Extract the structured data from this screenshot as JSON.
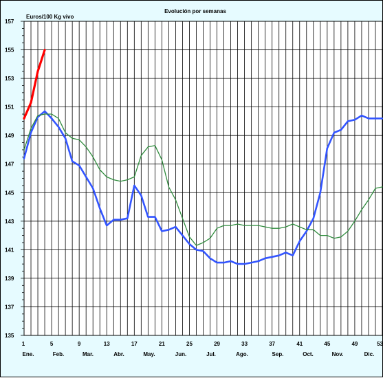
{
  "chart_data": {
    "type": "line",
    "title": "Evolución por semanas",
    "ylabel": "Euros/100 Kg vivo",
    "xlabel": "",
    "xlim": [
      1,
      53
    ],
    "ylim": [
      135,
      157
    ],
    "grid": true,
    "y_ticks": [
      135,
      137,
      139,
      141,
      143,
      145,
      147,
      149,
      151,
      153,
      155,
      157
    ],
    "x_ticks": [
      1,
      5,
      9,
      13,
      17,
      21,
      25,
      29,
      33,
      37,
      41,
      45,
      49,
      53
    ],
    "month_labels": [
      "Ene.",
      "Feb.",
      "Mar.",
      "Abr.",
      "May.",
      "Jun.",
      "Jul.",
      "Ago.",
      "Sep.",
      "Oct.",
      "Nov.",
      "Dic."
    ],
    "series": [
      {
        "color": "#ff0000",
        "x": [
          1,
          2,
          3,
          4
        ],
        "values": [
          150.2,
          151.3,
          153.5,
          155.0
        ]
      },
      {
        "color": "#3355ff",
        "x": [
          1,
          2,
          3,
          4,
          5,
          6,
          7,
          8,
          9,
          10,
          11,
          12,
          13,
          14,
          15,
          16,
          17,
          18,
          19,
          20,
          21,
          22,
          23,
          24,
          25,
          26,
          27,
          28,
          29,
          30,
          31,
          32,
          33,
          34,
          35,
          36,
          37,
          38,
          39,
          40,
          41,
          42,
          43,
          44,
          45,
          46,
          47,
          48,
          49,
          50,
          51,
          52,
          53
        ],
        "values": [
          147.4,
          149.2,
          150.3,
          150.7,
          150.2,
          149.6,
          148.8,
          147.2,
          146.9,
          146.1,
          145.3,
          143.9,
          142.7,
          143.1,
          143.1,
          143.2,
          145.5,
          144.8,
          143.3,
          143.3,
          142.3,
          142.4,
          142.6,
          142.0,
          141.4,
          141.0,
          140.9,
          140.4,
          140.1,
          140.1,
          140.2,
          140.0,
          140.0,
          140.1,
          140.2,
          140.4,
          140.5,
          140.6,
          140.8,
          140.6,
          141.6,
          142.3,
          143.2,
          145.0,
          148.1,
          149.2,
          149.4,
          150.0,
          150.1,
          150.4,
          150.2,
          150.2,
          150.2
        ]
      },
      {
        "color": "#2e8b3c",
        "x": [
          1,
          2,
          3,
          4,
          5,
          6,
          7,
          8,
          9,
          10,
          11,
          12,
          13,
          14,
          15,
          16,
          17,
          18,
          19,
          20,
          21,
          22,
          23,
          24,
          25,
          26,
          27,
          28,
          29,
          30,
          31,
          32,
          33,
          34,
          35,
          36,
          37,
          38,
          39,
          40,
          41,
          42,
          43,
          44,
          45,
          46,
          47,
          48,
          49,
          50,
          51,
          52,
          53
        ],
        "values": [
          148.0,
          149.5,
          150.4,
          150.5,
          150.5,
          150.2,
          149.2,
          148.8,
          148.7,
          148.2,
          147.5,
          146.6,
          146.1,
          145.9,
          145.8,
          145.9,
          146.1,
          147.6,
          148.2,
          148.3,
          147.3,
          145.4,
          144.5,
          143.2,
          141.9,
          141.3,
          141.5,
          141.8,
          142.5,
          142.7,
          142.7,
          142.8,
          142.7,
          142.7,
          142.7,
          142.6,
          142.5,
          142.5,
          142.6,
          142.8,
          142.6,
          142.4,
          142.4,
          142.0,
          142.0,
          141.8,
          141.9,
          142.3,
          143.0,
          143.8,
          144.5,
          145.3,
          145.4
        ]
      }
    ]
  }
}
